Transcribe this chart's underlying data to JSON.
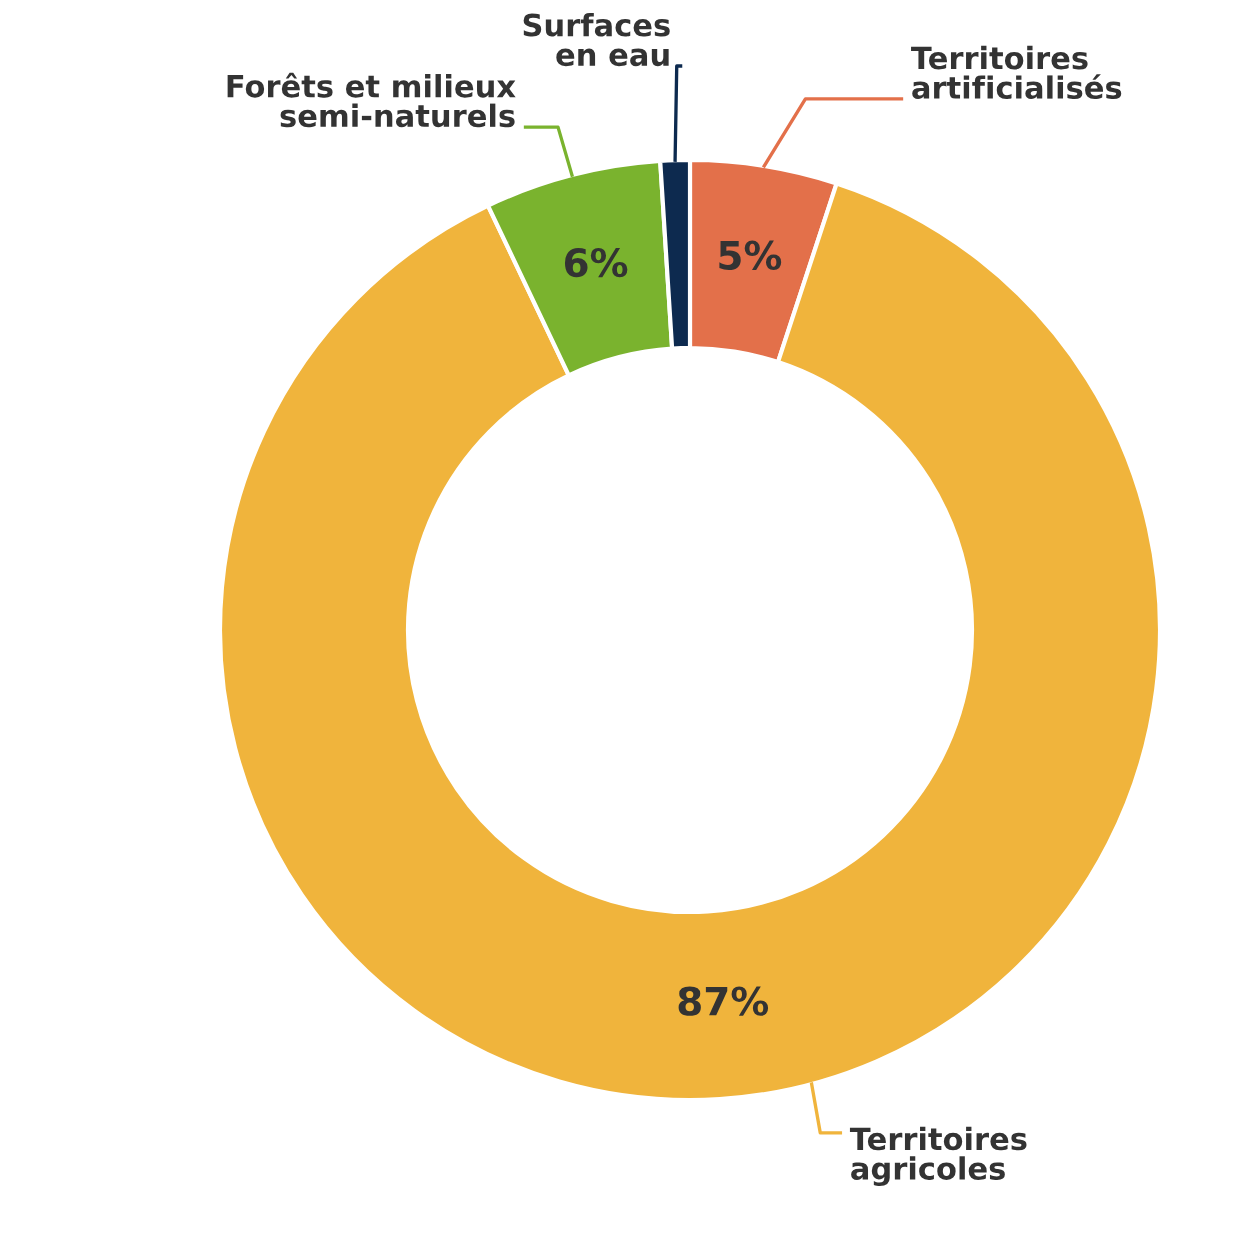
{
  "chart_data": {
    "type": "donut",
    "categories": [
      "Territoires artificialisés",
      "Territoires agricoles",
      "Forêts et milieux semi-naturels",
      "Surfaces en eau"
    ],
    "values": [
      5,
      87,
      6,
      1
    ],
    "value_labels": [
      "5%",
      "87%",
      "6%",
      null
    ],
    "colors": [
      "#e3704a",
      "#f0b43c",
      "#7ab32e",
      "#0d2a4f"
    ],
    "legend": false
  }
}
